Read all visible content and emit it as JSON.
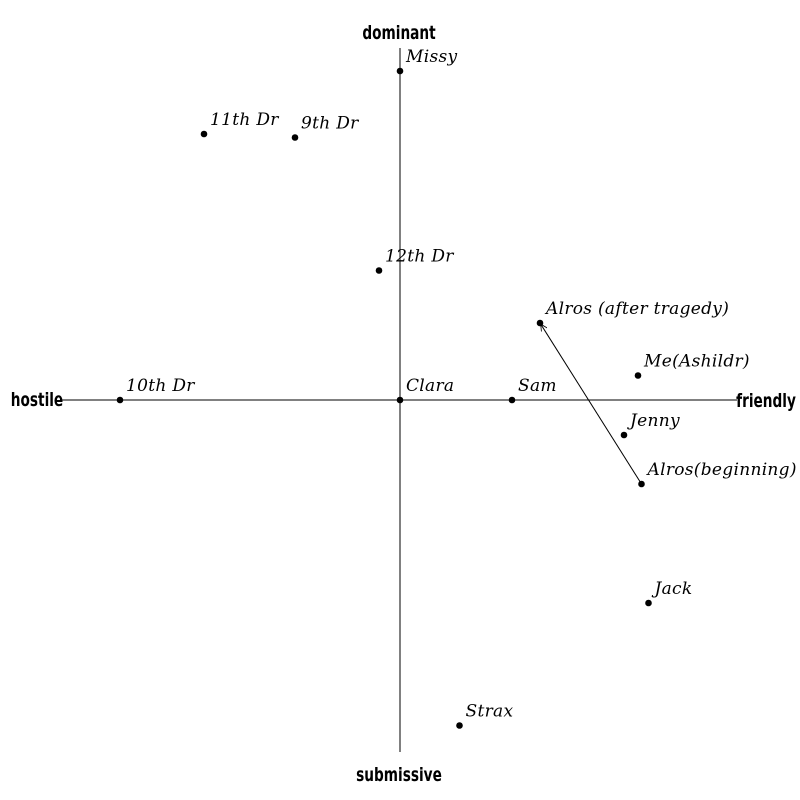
{
  "chart_data": {
    "type": "scatter",
    "title": "",
    "axes": {
      "x_negative_label": "hostile",
      "x_positive_label": "friendly",
      "y_positive_label": "dominant",
      "y_negative_label": "submissive",
      "xlim": [
        -10,
        10
      ],
      "ylim": [
        -10,
        10
      ],
      "grid": false,
      "legend": "none"
    },
    "points": [
      {
        "label": "Missy",
        "x": 0.0,
        "y": 9.4
      },
      {
        "label": "11th Dr",
        "x": -5.6,
        "y": 7.6
      },
      {
        "label": "9th Dr",
        "x": -3.0,
        "y": 7.5
      },
      {
        "label": "12th Dr",
        "x": -0.6,
        "y": 3.7
      },
      {
        "label": "Alros (after tragedy)",
        "x": 4.0,
        "y": 2.2
      },
      {
        "label": "Me(Ashildr)",
        "x": 6.8,
        "y": 0.7
      },
      {
        "label": "10th Dr",
        "x": -8.0,
        "y": 0.0
      },
      {
        "label": "Clara",
        "x": 0.0,
        "y": 0.0
      },
      {
        "label": "Sam",
        "x": 3.2,
        "y": 0.0
      },
      {
        "label": "Jenny",
        "x": 6.4,
        "y": -1.0
      },
      {
        "label": "Alros(beginning)",
        "x": 6.9,
        "y": -2.4
      },
      {
        "label": "Jack",
        "x": 7.1,
        "y": -5.8
      },
      {
        "label": "Strax",
        "x": 1.7,
        "y": -9.3
      }
    ],
    "annotations": [
      {
        "type": "arrow",
        "from": "Alros(beginning)",
        "to": "Alros (after tragedy)"
      }
    ]
  }
}
